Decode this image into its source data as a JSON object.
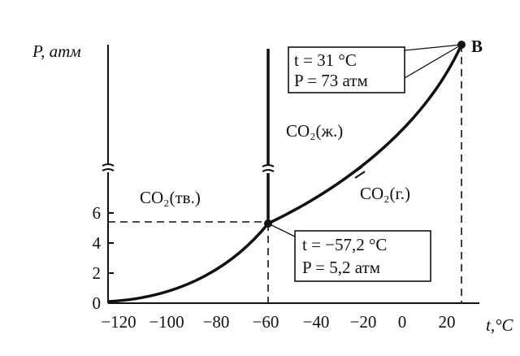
{
  "axes": {
    "y_label": "P, атм",
    "x_label": "t,°C",
    "x_ticks": [
      "−120",
      "−100",
      "−80",
      "−60",
      "−40",
      "−20",
      "0",
      "20"
    ],
    "y_ticks": [
      "0",
      "2",
      "4",
      "6"
    ]
  },
  "point_label": "B",
  "regions": {
    "solid": "CO₂(тв.)",
    "liquid": "CO₂(ж.)",
    "gas": "CO₂(г.)"
  },
  "annotations": {
    "critical": [
      "t = 31 °C",
      "P = 73 атм"
    ],
    "triple": [
      "t = −57,2 °C",
      "P = 5,2 атм"
    ]
  }
}
